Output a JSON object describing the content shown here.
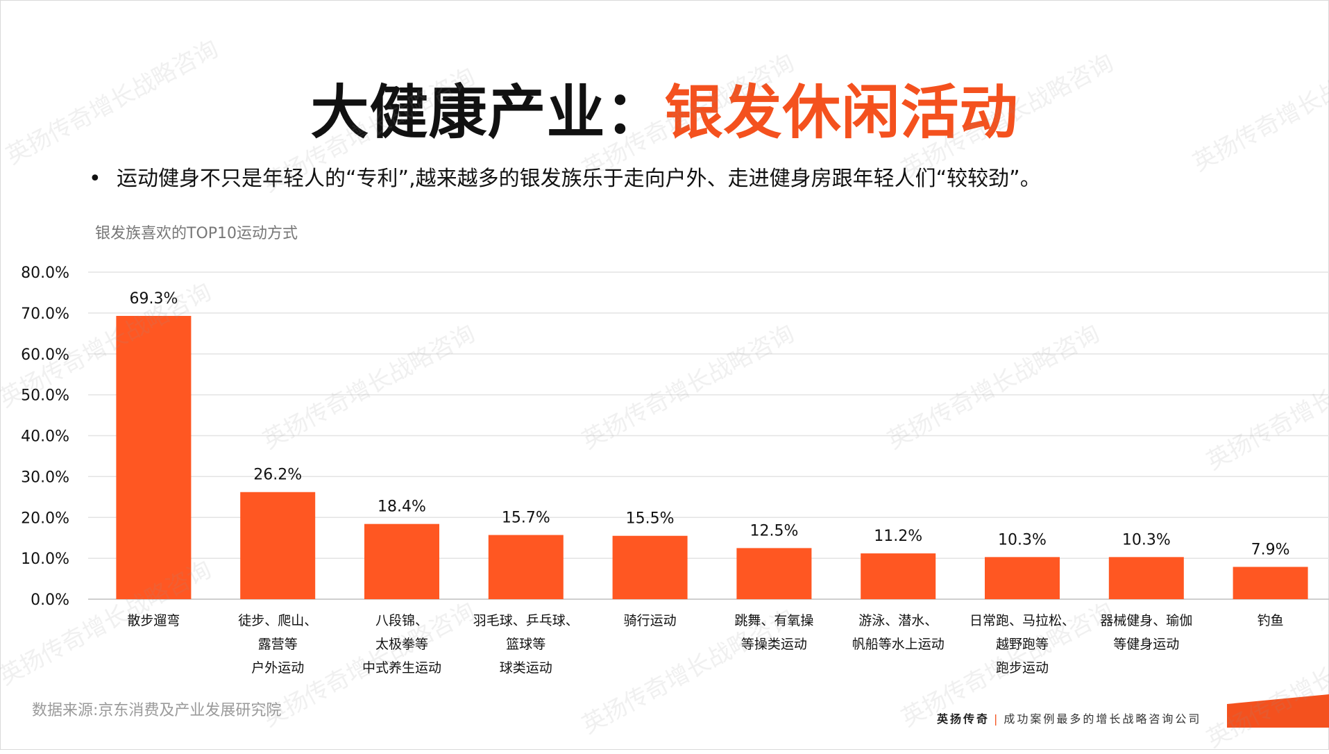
{
  "title": {
    "part1": "大健康产业：",
    "part2": "银发休闲活动"
  },
  "bullet": {
    "marker": "•",
    "text": "运动健身不只是年轻人的“专利”,越来越多的银发族乐于走向户外、走进健身房跟年轻人们“较较劲”。"
  },
  "chart_data": {
    "type": "bar",
    "title": "银发族喜欢的TOP10运动方式",
    "categories": [
      [
        "散步遛弯"
      ],
      [
        "徒步、爬山、",
        "露营等",
        "户外运动"
      ],
      [
        "八段锦、",
        "太极拳等",
        "中式养生运动"
      ],
      [
        "羽毛球、乒乓球、",
        "篮球等",
        "球类运动"
      ],
      [
        "骑行运动"
      ],
      [
        "跳舞、有氧操",
        "等操类运动"
      ],
      [
        "游泳、潜水、",
        "帆船等水上运动"
      ],
      [
        "日常跑、马拉松、",
        "越野跑等",
        "跑步运动"
      ],
      [
        "器械健身、瑜伽",
        "等健身运动"
      ],
      [
        "钓鱼"
      ]
    ],
    "values": [
      69.3,
      26.2,
      18.4,
      15.7,
      15.5,
      12.5,
      11.2,
      10.3,
      10.3,
      7.9
    ],
    "data_labels": [
      "69.3%",
      "26.2%",
      "18.4%",
      "15.7%",
      "15.5%",
      "12.5%",
      "11.2%",
      "10.3%",
      "10.3%",
      "7.9%"
    ],
    "y_ticks": [
      "0.0%",
      "10.0%",
      "20.0%",
      "30.0%",
      "40.0%",
      "50.0%",
      "60.0%",
      "70.0%",
      "80.0%"
    ],
    "ylim": [
      0,
      80
    ],
    "grid": true,
    "bar_color": "#ff5722"
  },
  "source": "数据来源:京东消费及产业发展研究院",
  "footer": {
    "brand": "英扬传奇",
    "separator": "|",
    "slogan": "成功案例最多的增长战略咨询公司"
  },
  "watermark": "英扬传奇增长战略咨询",
  "colors": {
    "accent": "#f4511e",
    "text": "#111111",
    "muted": "#777777"
  }
}
